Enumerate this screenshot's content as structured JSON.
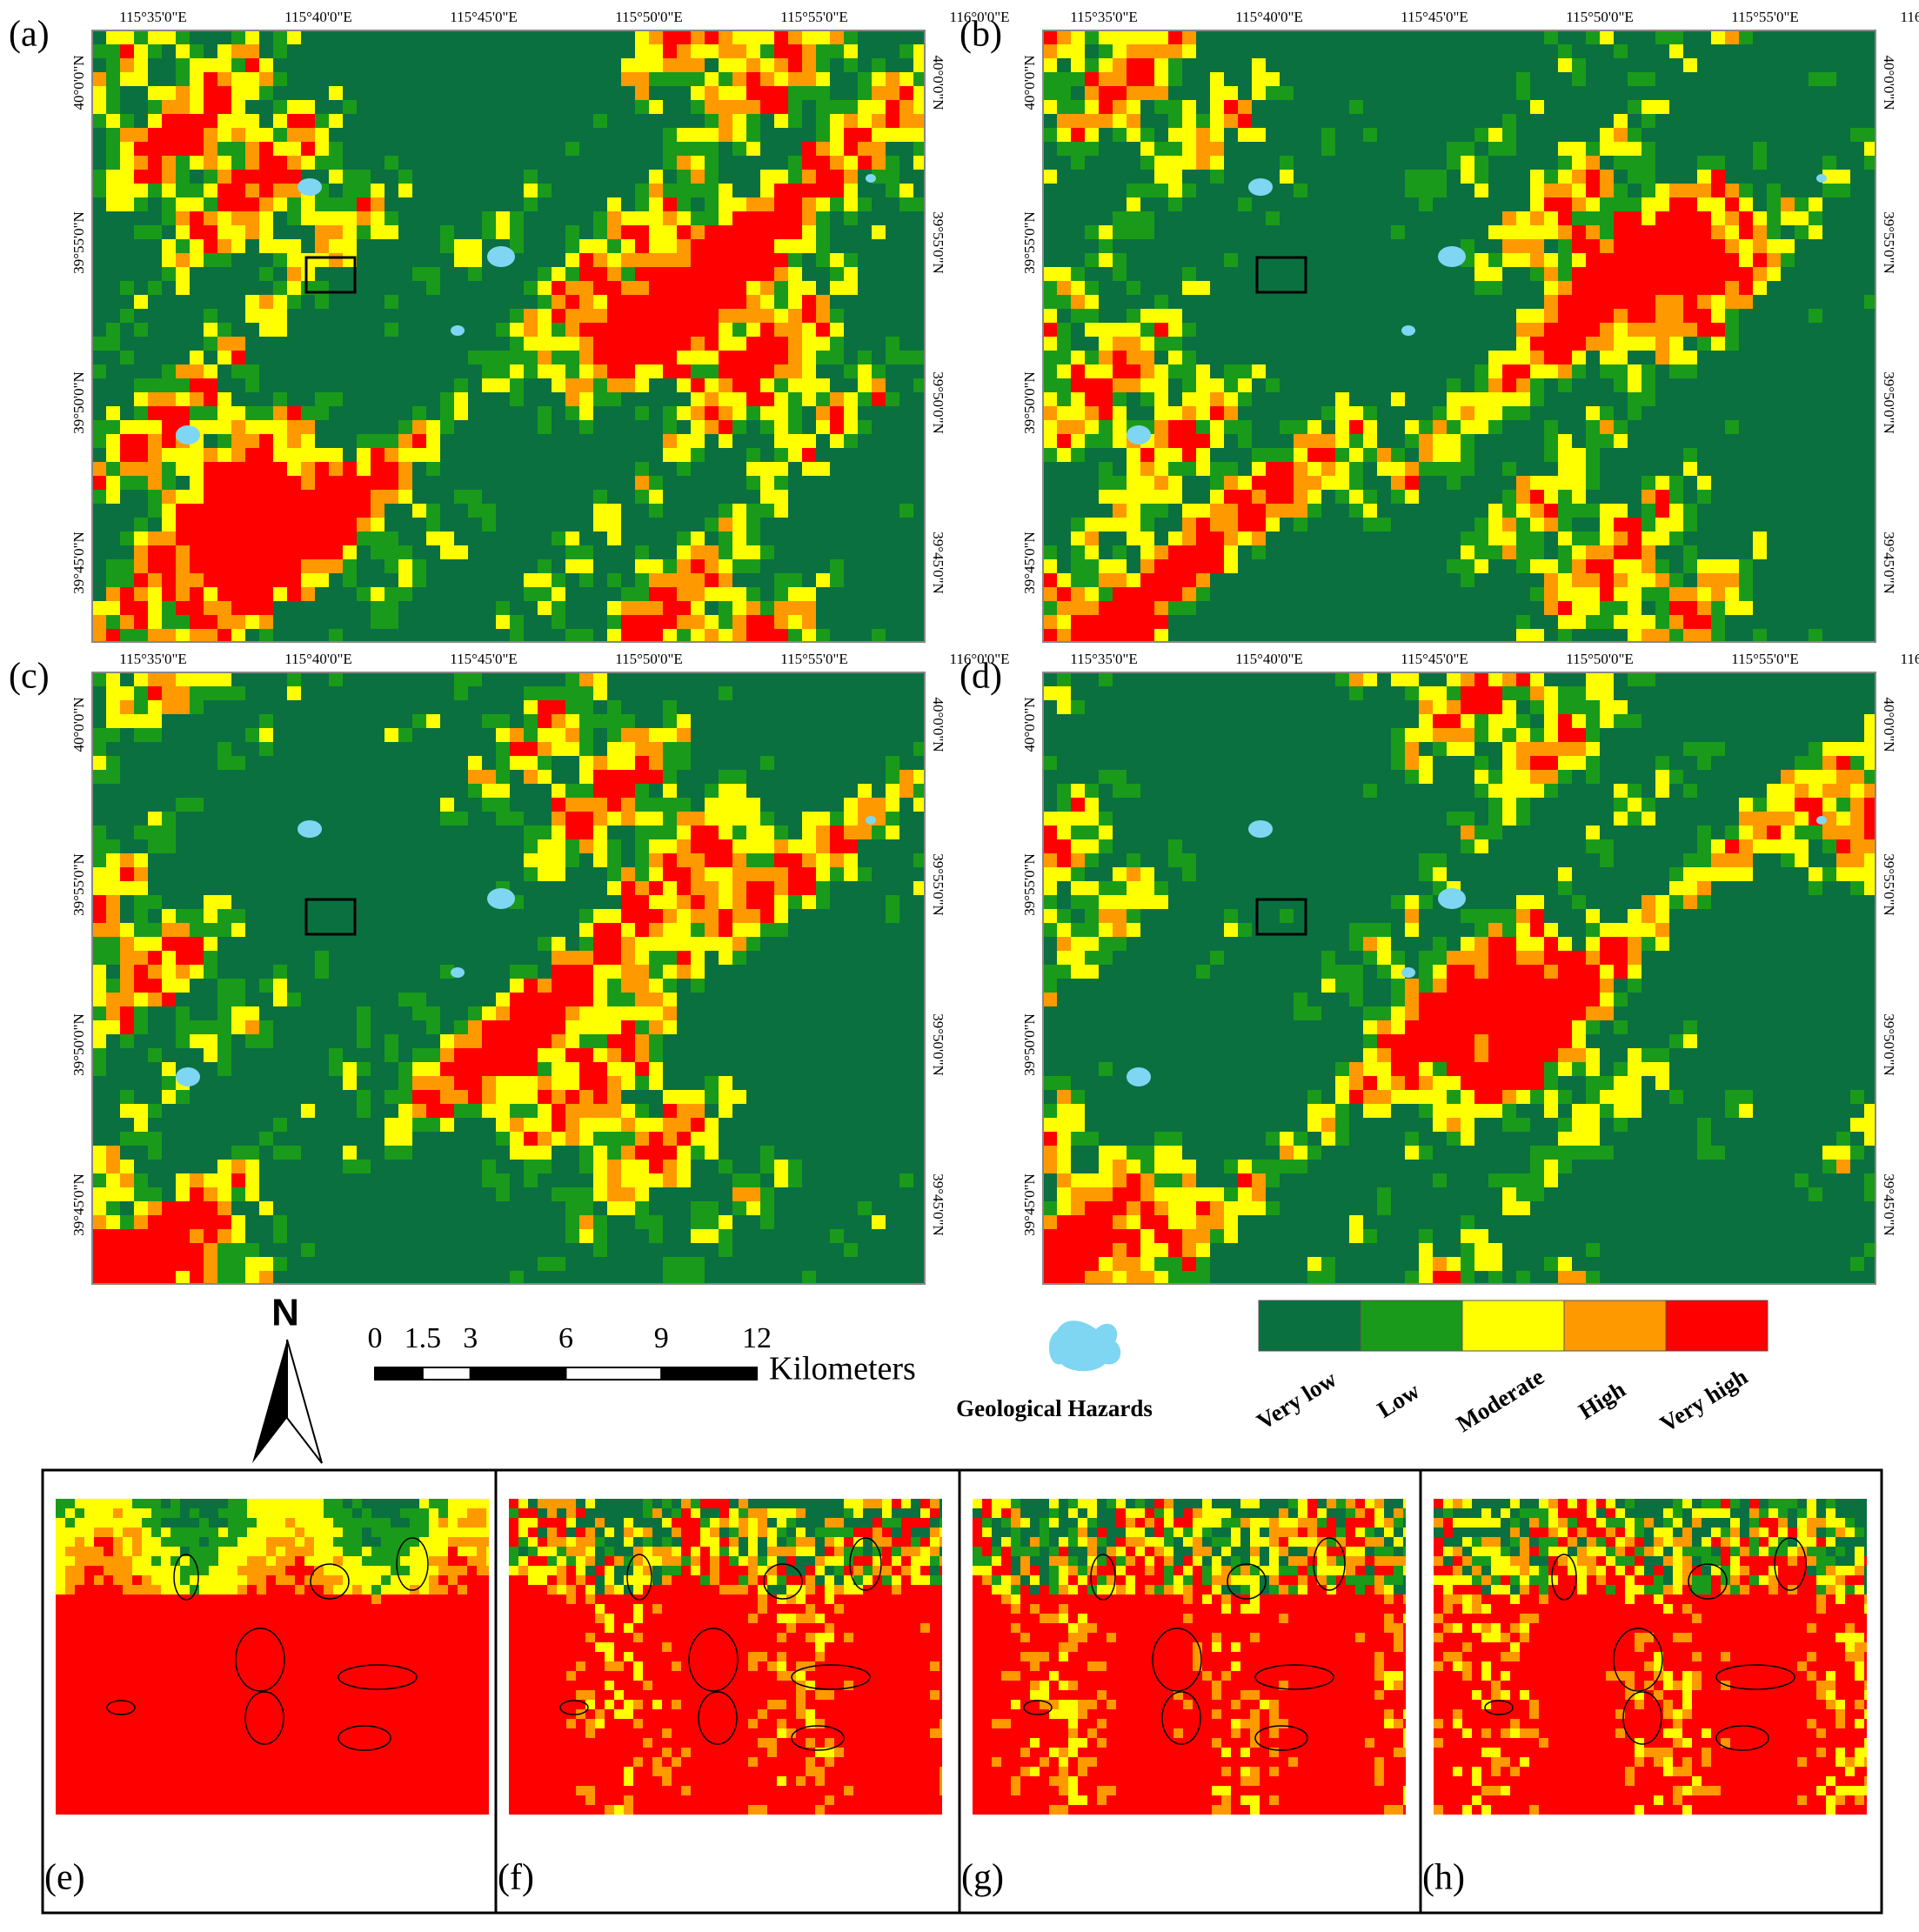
{
  "panels": [
    {
      "label": "(a)"
    },
    {
      "label": "(b)"
    },
    {
      "label": "(c)"
    },
    {
      "label": "(d)"
    }
  ],
  "insets": [
    {
      "label": "(e)"
    },
    {
      "label": "(f)"
    },
    {
      "label": "(g)"
    },
    {
      "label": "(h)"
    }
  ],
  "lon_labels": [
    "115°35'0\"E",
    "115°40'0\"E",
    "115°45'0\"E",
    "115°50'0\"E",
    "115°55'0\"E",
    "116°0'0\"E"
  ],
  "lat_labels": [
    "40°0'0\"N",
    "39°55'0\"N",
    "39°50'0\"N",
    "39°45'0\"N"
  ],
  "north": "N",
  "scale_bar": {
    "labels": [
      0,
      1.5,
      3,
      6,
      9,
      12
    ],
    "unit": "Kilometers"
  },
  "hazard_legend": {
    "label": "Geological Hazards",
    "color": "#7fd6f2"
  },
  "legend": {
    "classes": [
      {
        "label": "Very low",
        "color": "#0b7040"
      },
      {
        "label": "Low",
        "color": "#1a9a1a"
      },
      {
        "label": "Moderate",
        "color": "#ffff00"
      },
      {
        "label": "High",
        "color": "#ff9900"
      },
      {
        "label": "Very high",
        "color": "#ff0000"
      }
    ]
  }
}
